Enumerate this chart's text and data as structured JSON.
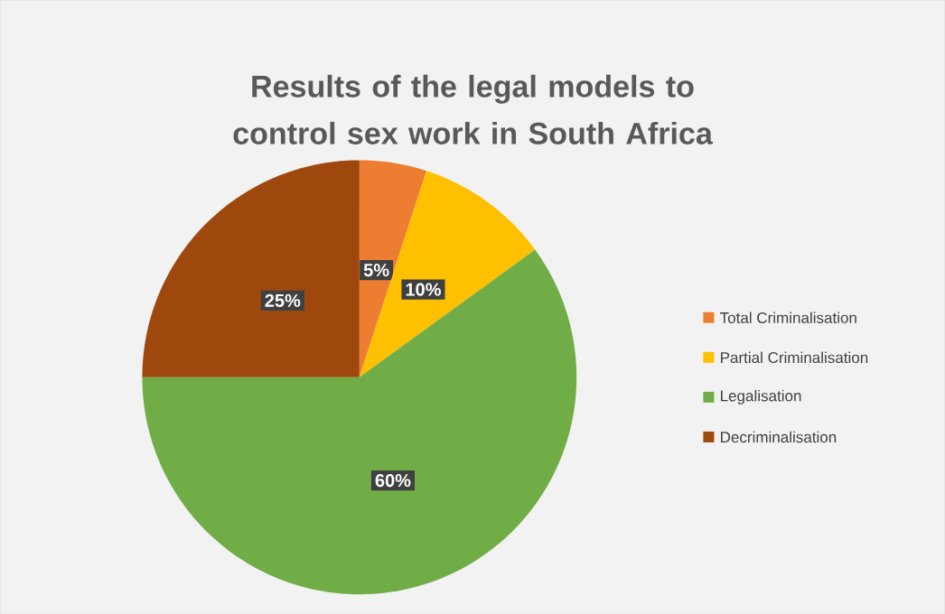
{
  "chart_data": {
    "type": "pie",
    "title": "Results of the legal models to control sex work in South Africa",
    "categories": [
      "Total Criminalisation",
      "Partial Criminalisation",
      "Legalisation",
      "Decriminalisation"
    ],
    "values": [
      5,
      10,
      60,
      25
    ],
    "colors": [
      "#ed7d31",
      "#ffc000",
      "#70ad47",
      "#9e480e"
    ],
    "value_labels": [
      "5%",
      "10%",
      "60%",
      "25%"
    ],
    "legend": "right"
  }
}
